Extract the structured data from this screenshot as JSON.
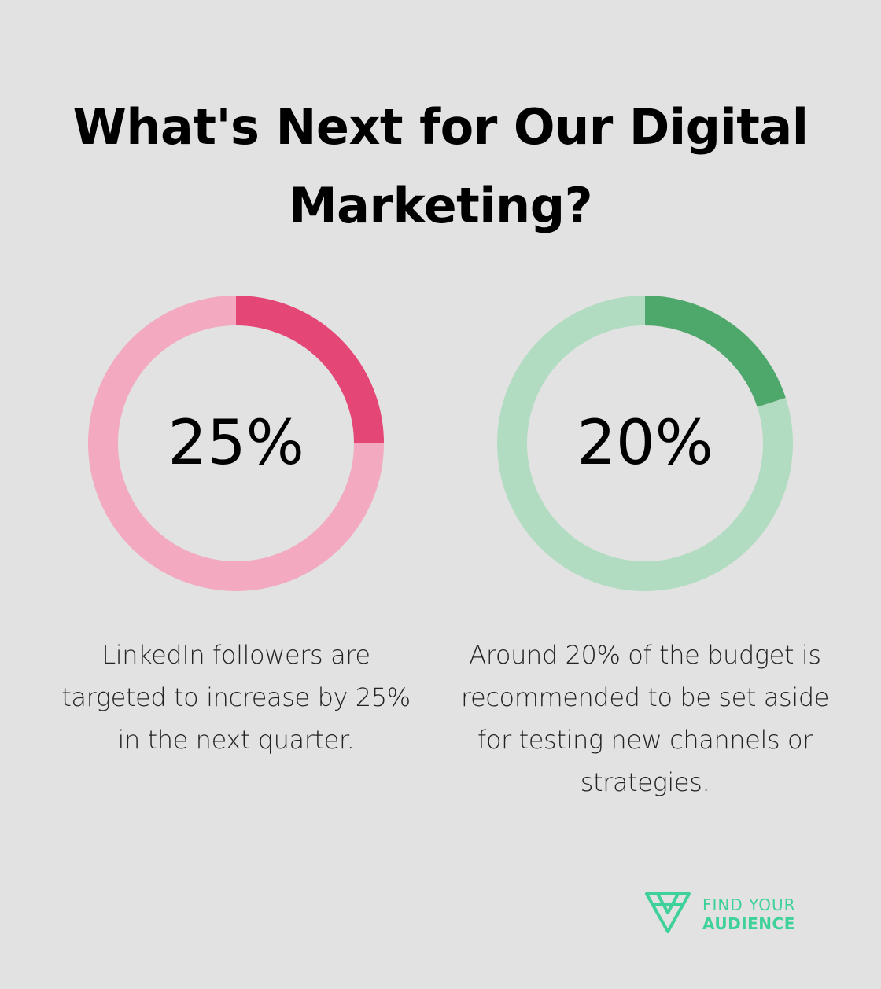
{
  "title": "What's Next for Our Digital Marketing?",
  "chart_data": [
    {
      "type": "pie",
      "value": 25,
      "label": "25%",
      "description": "LinkedIn followers are targeted to increase by 25% in the next quarter.",
      "colors": {
        "highlight": "#e44676",
        "track": "#f3a9c0"
      }
    },
    {
      "type": "pie",
      "value": 20,
      "label": "20%",
      "description": "Around 20% of the budget is recommended to be set aside for testing new channels or strategies.",
      "colors": {
        "highlight": "#4ea76b",
        "track": "#b2dcc1"
      }
    }
  ],
  "logo": {
    "line1": "FIND YOUR",
    "line2": "AUDIENCE",
    "color": "#3ed19a",
    "icon": "triangle-logo-icon"
  }
}
